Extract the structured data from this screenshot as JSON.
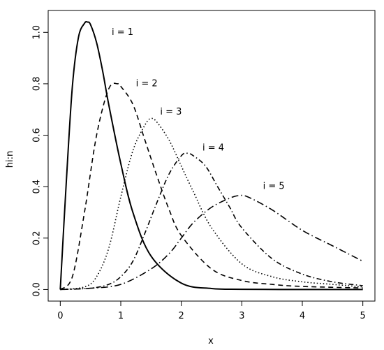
{
  "chart_data": {
    "type": "line",
    "title": "",
    "xlabel": "x",
    "ylabel": "hi:n",
    "xlim": [
      -0.2,
      5.2
    ],
    "ylim": [
      -0.045,
      1.085
    ],
    "x_ticks": [
      0,
      1,
      2,
      3,
      4,
      5
    ],
    "x_tick_labels": [
      "0",
      "1",
      "2",
      "3",
      "4",
      "5"
    ],
    "y_ticks": [
      0.0,
      0.2,
      0.4,
      0.6,
      0.8,
      1.0
    ],
    "y_tick_labels": [
      "0.0",
      "0.2",
      "0.4",
      "0.6",
      "0.8",
      "1.0"
    ],
    "grid": false,
    "legend": "none",
    "annotations": [
      {
        "text": "i = 1",
        "x": 0.85,
        "y": 1.0
      },
      {
        "text": "i = 2",
        "x": 1.25,
        "y": 0.8
      },
      {
        "text": "i = 3",
        "x": 1.65,
        "y": 0.69
      },
      {
        "text": "i = 4",
        "x": 2.35,
        "y": 0.55
      },
      {
        "text": "i = 5",
        "x": 3.35,
        "y": 0.4
      }
    ],
    "series": [
      {
        "x": [
          0,
          0.1,
          0.2,
          0.3,
          0.4,
          0.45,
          0.5,
          0.6,
          0.7,
          0.8,
          1.0,
          1.2,
          1.5,
          2.0,
          2.5,
          3.0,
          4.0,
          5.0
        ],
        "values": [
          0,
          0.42,
          0.79,
          0.98,
          1.035,
          1.04,
          1.03,
          0.96,
          0.85,
          0.72,
          0.49,
          0.3,
          0.13,
          0.025,
          0.004,
          0.001,
          0.0,
          0.0
        ],
        "dash": "solid"
      },
      {
        "x": [
          0,
          0.2,
          0.4,
          0.6,
          0.8,
          0.95,
          1.0,
          1.2,
          1.4,
          1.6,
          1.8,
          2.0,
          2.5,
          3.0,
          3.5,
          4.0,
          5.0
        ],
        "values": [
          0,
          0.05,
          0.3,
          0.6,
          0.78,
          0.8,
          0.79,
          0.72,
          0.58,
          0.44,
          0.31,
          0.21,
          0.08,
          0.035,
          0.02,
          0.012,
          0.006
        ],
        "dash": "dashed"
      },
      {
        "x": [
          0,
          0.4,
          0.6,
          0.8,
          1.0,
          1.2,
          1.4,
          1.5,
          1.6,
          1.8,
          2.0,
          2.2,
          2.5,
          3.0,
          3.5,
          4.0,
          4.5,
          5.0
        ],
        "values": [
          0,
          0.01,
          0.05,
          0.16,
          0.36,
          0.54,
          0.64,
          0.665,
          0.65,
          0.58,
          0.48,
          0.38,
          0.24,
          0.1,
          0.05,
          0.03,
          0.02,
          0.01
        ],
        "dash": "dotted"
      },
      {
        "x": [
          0,
          0.5,
          0.8,
          1.0,
          1.2,
          1.4,
          1.6,
          1.8,
          2.0,
          2.1,
          2.2,
          2.4,
          2.6,
          2.8,
          3.0,
          3.5,
          4.0,
          4.5,
          5.0
        ],
        "values": [
          0,
          0.005,
          0.02,
          0.05,
          0.11,
          0.22,
          0.34,
          0.45,
          0.52,
          0.53,
          0.52,
          0.48,
          0.4,
          0.32,
          0.24,
          0.12,
          0.06,
          0.03,
          0.015
        ],
        "dash": "dotdash"
      },
      {
        "x": [
          0,
          0.5,
          1.0,
          1.5,
          1.8,
          2.0,
          2.2,
          2.5,
          2.8,
          2.95,
          3.1,
          3.5,
          4.0,
          4.5,
          5.0
        ],
        "values": [
          0,
          0.005,
          0.02,
          0.08,
          0.14,
          0.2,
          0.26,
          0.32,
          0.355,
          0.365,
          0.36,
          0.31,
          0.23,
          0.17,
          0.11
        ],
        "dash": "longdash-dot"
      }
    ]
  }
}
